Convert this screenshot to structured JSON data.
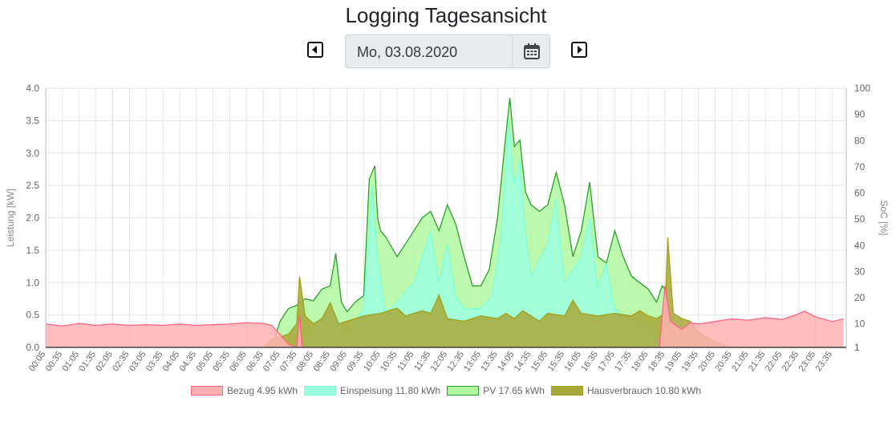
{
  "header": {
    "title": "Logging Tagesansicht",
    "date_value": "Mo, 03.08.2020",
    "prev_icon": "caret-left-icon",
    "next_icon": "caret-right-icon",
    "calendar_icon": "calendar-icon"
  },
  "chart_data": {
    "type": "area",
    "title": "",
    "ylabel": "Leistung [kW]",
    "y2label": "SoC [%]",
    "ylim": [
      0,
      4.0
    ],
    "y2lim": [
      1,
      100
    ],
    "yticks": [
      "0.0",
      "0.5",
      "1.0",
      "1.5",
      "2.0",
      "2.5",
      "3.0",
      "3.5",
      "4.0"
    ],
    "y2ticks": [
      "1",
      "10",
      "20",
      "30",
      "40",
      "50",
      "60",
      "70",
      "80",
      "90",
      "100"
    ],
    "x_ticks": [
      "00:05",
      "00:35",
      "01:05",
      "01:35",
      "02:05",
      "02:35",
      "03:05",
      "03:35",
      "04:05",
      "04:35",
      "05:05",
      "05:35",
      "06:05",
      "06:35",
      "07:05",
      "07:35",
      "08:05",
      "08:35",
      "09:05",
      "09:35",
      "10:05",
      "10:35",
      "11:05",
      "11:35",
      "12:05",
      "12:35",
      "13:05",
      "13:35",
      "14:05",
      "14:35",
      "15:05",
      "15:35",
      "16:05",
      "16:35",
      "17:05",
      "17:35",
      "18:05",
      "18:35",
      "19:05",
      "19:35",
      "20:05",
      "20:35",
      "21:05",
      "21:35",
      "22:05",
      "22:35",
      "23:05",
      "23:35"
    ],
    "grid": true,
    "legend_position": "bottom",
    "series": [
      {
        "name": "Bezug 4.95 kWh",
        "color": "#ff6384",
        "fill": "#ffb1b1",
        "axis": "left",
        "points": [
          [
            "00:05",
            0.36
          ],
          [
            "00:35",
            0.33
          ],
          [
            "01:05",
            0.37
          ],
          [
            "01:35",
            0.34
          ],
          [
            "02:05",
            0.36
          ],
          [
            "02:35",
            0.34
          ],
          [
            "03:05",
            0.35
          ],
          [
            "03:35",
            0.34
          ],
          [
            "04:05",
            0.36
          ],
          [
            "04:35",
            0.34
          ],
          [
            "05:05",
            0.35
          ],
          [
            "05:35",
            0.36
          ],
          [
            "06:05",
            0.38
          ],
          [
            "06:35",
            0.37
          ],
          [
            "06:50",
            0.34
          ],
          [
            "07:05",
            0.2
          ],
          [
            "07:20",
            0.05
          ],
          [
            "07:35",
            0.0
          ],
          [
            "07:40",
            0.5
          ],
          [
            "07:45",
            0.0
          ],
          [
            "18:25",
            0.0
          ],
          [
            "18:35",
            0.95
          ],
          [
            "18:45",
            0.4
          ],
          [
            "19:05",
            0.28
          ],
          [
            "19:20",
            0.38
          ],
          [
            "19:35",
            0.36
          ],
          [
            "20:05",
            0.4
          ],
          [
            "20:35",
            0.44
          ],
          [
            "21:05",
            0.42
          ],
          [
            "21:35",
            0.46
          ],
          [
            "22:05",
            0.43
          ],
          [
            "22:35",
            0.52
          ],
          [
            "22:45",
            0.56
          ],
          [
            "23:05",
            0.47
          ],
          [
            "23:35",
            0.4
          ],
          [
            "23:55",
            0.44
          ]
        ]
      },
      {
        "name": "Einspeisung 11.80 kWh",
        "color": "#7fffd4",
        "fill": "#9cffe0",
        "axis": "left",
        "points": [
          [
            "07:35",
            0.0
          ],
          [
            "08:05",
            0.3
          ],
          [
            "08:35",
            0.55
          ],
          [
            "09:05",
            0.2
          ],
          [
            "09:35",
            0.6
          ],
          [
            "09:50",
            2.5
          ],
          [
            "10:00",
            1.4
          ],
          [
            "10:15",
            0.5
          ],
          [
            "10:35",
            0.7
          ],
          [
            "11:05",
            1.0
          ],
          [
            "11:35",
            1.8
          ],
          [
            "11:50",
            1.0
          ],
          [
            "12:05",
            1.6
          ],
          [
            "12:20",
            0.8
          ],
          [
            "12:35",
            0.6
          ],
          [
            "13:05",
            0.6
          ],
          [
            "13:25",
            0.8
          ],
          [
            "13:40",
            1.6
          ],
          [
            "13:55",
            3.5
          ],
          [
            "14:05",
            2.5
          ],
          [
            "14:15",
            2.9
          ],
          [
            "14:25",
            1.8
          ],
          [
            "14:35",
            1.1
          ],
          [
            "15:05",
            1.6
          ],
          [
            "15:20",
            2.3
          ],
          [
            "15:35",
            1.0
          ],
          [
            "16:05",
            1.4
          ],
          [
            "16:20",
            2.0
          ],
          [
            "16:35",
            0.9
          ],
          [
            "16:50",
            1.3
          ],
          [
            "17:05",
            0.6
          ],
          [
            "17:20",
            0.5
          ],
          [
            "17:35",
            0.4
          ],
          [
            "18:05",
            0.35
          ],
          [
            "18:20",
            0.2
          ],
          [
            "18:35",
            0.0
          ]
        ]
      },
      {
        "name": "PV 17.65 kWh",
        "color": "#2ca02c",
        "fill": "#b0f7a0",
        "axis": "left",
        "points": [
          [
            "06:50",
            0.0
          ],
          [
            "07:05",
            0.4
          ],
          [
            "07:20",
            0.6
          ],
          [
            "07:35",
            0.65
          ],
          [
            "07:50",
            0.75
          ],
          [
            "08:05",
            0.72
          ],
          [
            "08:20",
            0.9
          ],
          [
            "08:35",
            0.95
          ],
          [
            "08:45",
            1.45
          ],
          [
            "08:55",
            0.7
          ],
          [
            "09:05",
            0.55
          ],
          [
            "09:20",
            0.7
          ],
          [
            "09:35",
            0.8
          ],
          [
            "09:45",
            2.6
          ],
          [
            "09:55",
            2.8
          ],
          [
            "10:00",
            2.0
          ],
          [
            "10:05",
            1.8
          ],
          [
            "10:15",
            1.7
          ],
          [
            "10:35",
            1.4
          ],
          [
            "10:50",
            1.6
          ],
          [
            "11:05",
            1.8
          ],
          [
            "11:20",
            2.0
          ],
          [
            "11:35",
            2.1
          ],
          [
            "11:50",
            1.8
          ],
          [
            "12:05",
            2.2
          ],
          [
            "12:20",
            1.9
          ],
          [
            "12:35",
            1.4
          ],
          [
            "12:50",
            0.95
          ],
          [
            "13:05",
            0.95
          ],
          [
            "13:20",
            1.2
          ],
          [
            "13:35",
            2.0
          ],
          [
            "13:50",
            3.3
          ],
          [
            "13:57",
            3.85
          ],
          [
            "14:05",
            3.1
          ],
          [
            "14:15",
            3.2
          ],
          [
            "14:25",
            2.4
          ],
          [
            "14:35",
            2.2
          ],
          [
            "14:50",
            2.1
          ],
          [
            "15:05",
            2.2
          ],
          [
            "15:20",
            2.7
          ],
          [
            "15:35",
            2.2
          ],
          [
            "15:50",
            1.4
          ],
          [
            "16:05",
            1.8
          ],
          [
            "16:20",
            2.55
          ],
          [
            "16:35",
            1.4
          ],
          [
            "16:50",
            1.3
          ],
          [
            "17:05",
            1.8
          ],
          [
            "17:20",
            1.4
          ],
          [
            "17:35",
            1.1
          ],
          [
            "17:50",
            1.0
          ],
          [
            "18:05",
            0.9
          ],
          [
            "18:20",
            0.7
          ],
          [
            "18:30",
            0.95
          ],
          [
            "18:35",
            0.9
          ],
          [
            "18:45",
            0.05
          ],
          [
            "19:05",
            0.02
          ],
          [
            "19:35",
            0.0
          ]
        ]
      },
      {
        "name": "Hausverbrauch 10.80 kWh",
        "color": "#9ea318",
        "fill": "#a8a83a",
        "axis": "right",
        "unit": "%",
        "points": [
          [
            "06:35",
            1
          ],
          [
            "06:50",
            4
          ],
          [
            "07:05",
            5
          ],
          [
            "07:20",
            6
          ],
          [
            "07:35",
            10
          ],
          [
            "07:40",
            28
          ],
          [
            "07:50",
            13
          ],
          [
            "08:05",
            10
          ],
          [
            "08:20",
            12
          ],
          [
            "08:35",
            18
          ],
          [
            "08:50",
            10
          ],
          [
            "09:05",
            11
          ],
          [
            "09:35",
            13
          ],
          [
            "10:05",
            14
          ],
          [
            "10:20",
            15
          ],
          [
            "10:35",
            16
          ],
          [
            "10:50",
            13
          ],
          [
            "11:05",
            14
          ],
          [
            "11:20",
            15
          ],
          [
            "11:35",
            14
          ],
          [
            "11:50",
            21
          ],
          [
            "12:05",
            12
          ],
          [
            "12:35",
            11
          ],
          [
            "13:05",
            13
          ],
          [
            "13:35",
            12
          ],
          [
            "13:50",
            14
          ],
          [
            "14:05",
            12
          ],
          [
            "14:20",
            15
          ],
          [
            "14:35",
            13
          ],
          [
            "14:50",
            11
          ],
          [
            "15:05",
            14
          ],
          [
            "15:35",
            13
          ],
          [
            "15:50",
            19
          ],
          [
            "16:05",
            14
          ],
          [
            "16:35",
            13
          ],
          [
            "17:05",
            14
          ],
          [
            "17:35",
            13
          ],
          [
            "17:50",
            15
          ],
          [
            "18:05",
            13
          ],
          [
            "18:20",
            12
          ],
          [
            "18:35",
            14
          ],
          [
            "18:40",
            43
          ],
          [
            "18:50",
            14
          ],
          [
            "19:05",
            12
          ],
          [
            "19:20",
            11
          ],
          [
            "19:35",
            7
          ],
          [
            "20:05",
            3
          ],
          [
            "20:35",
            1
          ],
          [
            "23:55",
            1
          ]
        ]
      }
    ]
  }
}
